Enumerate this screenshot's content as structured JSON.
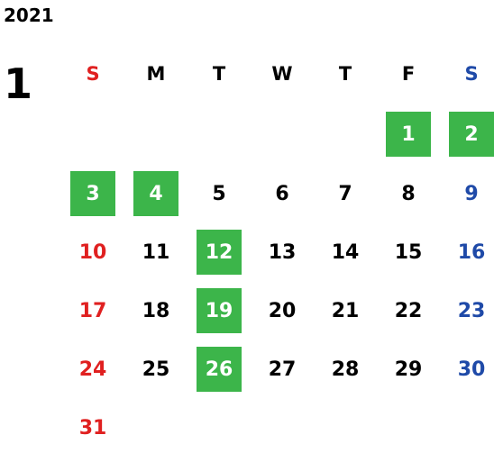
{
  "year": "2021",
  "month": "1",
  "weekdays": [
    "S",
    "M",
    "T",
    "W",
    "T",
    "F",
    "S"
  ],
  "colors": {
    "sunday": "#e02020",
    "saturday": "#1f4aa8",
    "holiday_bg": "#3cb54a",
    "holiday_text": "#ffffff",
    "weekday_text": "#000000"
  },
  "weeks": [
    [
      "",
      "",
      "",
      "",
      "",
      "1",
      "2"
    ],
    [
      "3",
      "4",
      "5",
      "6",
      "7",
      "8",
      "9"
    ],
    [
      "10",
      "11",
      "12",
      "13",
      "14",
      "15",
      "16"
    ],
    [
      "17",
      "18",
      "19",
      "20",
      "21",
      "22",
      "23"
    ],
    [
      "24",
      "25",
      "26",
      "27",
      "28",
      "29",
      "30"
    ],
    [
      "31",
      "",
      "",
      "",
      "",
      "",
      ""
    ]
  ],
  "highlighted_days": [
    "1",
    "2",
    "3",
    "4",
    "12",
    "19",
    "26"
  ]
}
